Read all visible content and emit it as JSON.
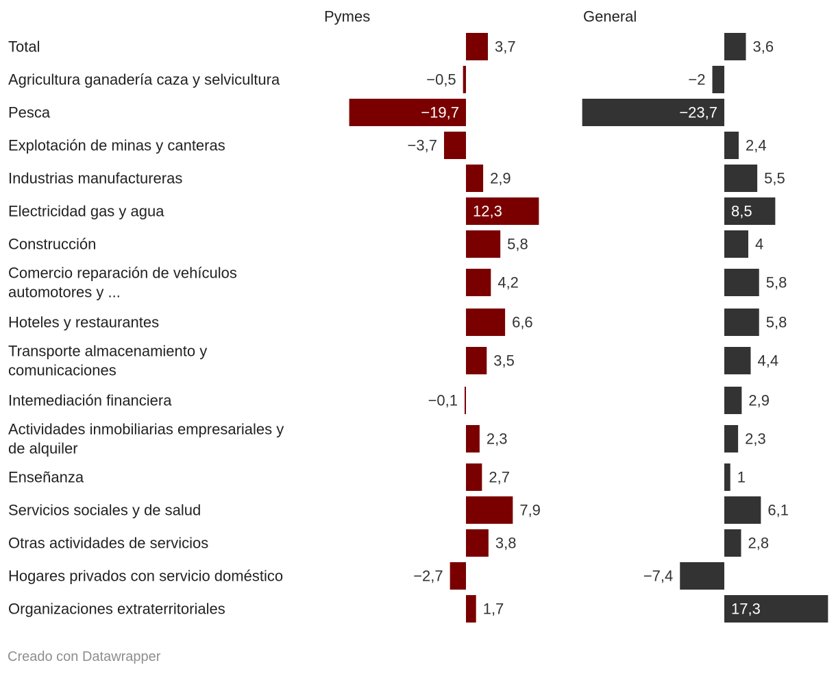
{
  "chart_data": {
    "type": "bar",
    "orientation": "horizontal",
    "series": [
      {
        "name": "Pymes",
        "color": "#7a0000",
        "values": [
          3.7,
          -0.5,
          -19.7,
          -3.7,
          2.9,
          12.3,
          5.8,
          4.2,
          6.6,
          3.5,
          -0.1,
          2.3,
          2.7,
          7.9,
          3.8,
          -2.7,
          1.7
        ],
        "labels": [
          "3,7",
          "−0,5",
          "−19,7",
          "−3,7",
          "2,9",
          "12,3",
          "5,8",
          "4,2",
          "6,6",
          "3,5",
          "−0,1",
          "2,3",
          "2,7",
          "7,9",
          "3,8",
          "−2,7",
          "1,7"
        ]
      },
      {
        "name": "General",
        "color": "#333333",
        "values": [
          3.6,
          -2,
          -23.7,
          2.4,
          5.5,
          8.5,
          4,
          5.8,
          5.8,
          4.4,
          2.9,
          2.3,
          1,
          6.1,
          2.8,
          -7.4,
          17.3
        ],
        "labels": [
          "3,6",
          "−2",
          "−23,7",
          "2,4",
          "5,5",
          "8,5",
          "4",
          "5,8",
          "5,8",
          "4,4",
          "2,9",
          "2,3",
          "1",
          "6,1",
          "2,8",
          "−7,4",
          "17,3"
        ]
      }
    ],
    "categories": [
      [
        "Total"
      ],
      [
        "Agricultura ganadería caza y selvicultura"
      ],
      [
        "Pesca"
      ],
      [
        "Explotación de minas y canteras"
      ],
      [
        "Industrias manufactureras"
      ],
      [
        "Electricidad gas y agua"
      ],
      [
        "Construcción"
      ],
      [
        "Comercio reparación de vehículos",
        "automotores y ..."
      ],
      [
        "Hoteles y restaurantes"
      ],
      [
        "Transporte almacenamiento y",
        "comunicaciones"
      ],
      [
        "Intemediación financiera"
      ],
      [
        "Actividades inmobiliarias empresariales y",
        "de alquiler"
      ],
      [
        "Enseñanza"
      ],
      [
        "Servicios sociales y de salud"
      ],
      [
        "Otras actividades de servicios"
      ],
      [
        "Hogares privados con servicio doméstico"
      ],
      [
        "Organizaciones extraterritoriales"
      ]
    ]
  },
  "footer": "Creado con Datawrapper"
}
